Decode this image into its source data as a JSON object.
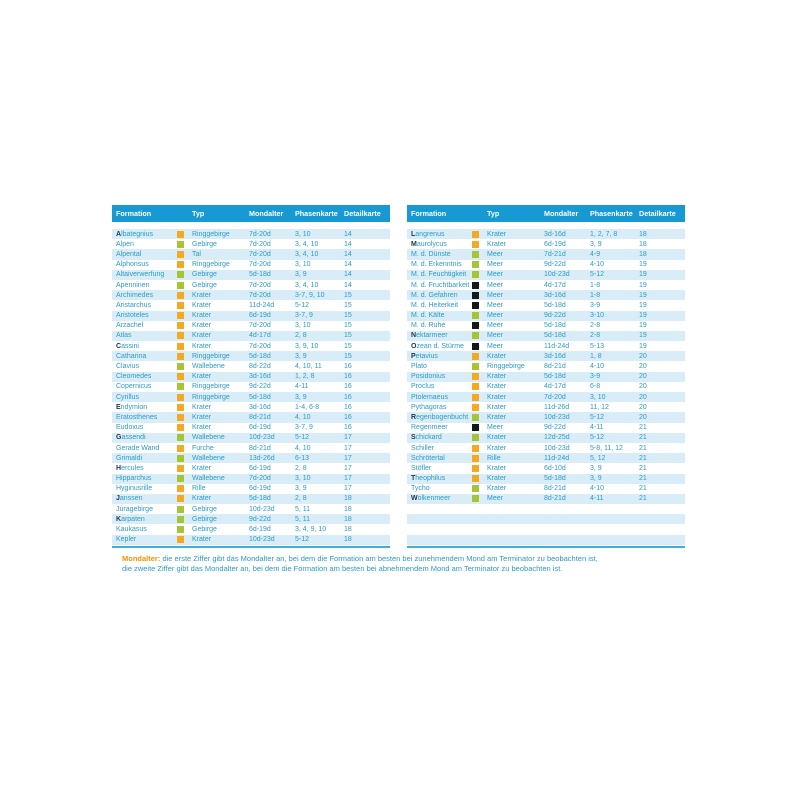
{
  "colors": {
    "header_bg": "#1799d3",
    "stripe": "#d9edf8",
    "text": "#2d9bc5",
    "bold_initial": "#21374d",
    "square_orange": "#f6a820",
    "square_green": "#a5c535",
    "square_black": "#14181b",
    "rule": "#3fadde",
    "footnote_label": "#f39200"
  },
  "footnote": {
    "label": "Mondalter:",
    "line1": "die erste Ziffer gibt das Mondalter an, bei dem die Formation am besten bei zunehmendem Mond am Terminator zu beobachten ist,",
    "line2": "die zweite Ziffer gibt das Mondalter an, bei dem die Formation am besten bei abnehmendem Mond am Terminator zu beobachten ist."
  },
  "tables": [
    {
      "id": "left",
      "headers": [
        "Formation",
        "Typ",
        "Mondalter",
        "Phasenkarte",
        "Detailkarte"
      ],
      "empty_rows": 0,
      "rows": [
        {
          "name": "Albategnius",
          "bold": true,
          "square": "orange",
          "typ": "Ringgebirge",
          "mondalter": "7d-20d",
          "phasenkarte": "3, 10",
          "detailkarte": "14"
        },
        {
          "name": "Alpen",
          "bold": false,
          "square": "green",
          "typ": "Gebirge",
          "mondalter": "7d-20d",
          "phasenkarte": "3, 4, 10",
          "detailkarte": "14"
        },
        {
          "name": "Alpental",
          "bold": false,
          "square": "orange",
          "typ": "Tal",
          "mondalter": "7d-20d",
          "phasenkarte": "3, 4, 10",
          "detailkarte": "14"
        },
        {
          "name": "Alphonsus",
          "bold": false,
          "square": "orange",
          "typ": "Ringgebirge",
          "mondalter": "7d-20d",
          "phasenkarte": "3, 10",
          "detailkarte": "14"
        },
        {
          "name": "Altaiverwerfung",
          "bold": false,
          "square": "green",
          "typ": "Gebirge",
          "mondalter": "5d-18d",
          "phasenkarte": "3, 9",
          "detailkarte": "14"
        },
        {
          "name": "Apenninen",
          "bold": false,
          "square": "green",
          "typ": "Gebirge",
          "mondalter": "7d-20d",
          "phasenkarte": "3, 4, 10",
          "detailkarte": "14"
        },
        {
          "name": "Archimedes",
          "bold": false,
          "square": "orange",
          "typ": "Krater",
          "mondalter": "7d-20d",
          "phasenkarte": "3-7, 9, 10",
          "detailkarte": "15"
        },
        {
          "name": "Aristarchus",
          "bold": false,
          "square": "orange",
          "typ": "Krater",
          "mondalter": "11d-24d",
          "phasenkarte": "5-12",
          "detailkarte": "15"
        },
        {
          "name": "Aristoteles",
          "bold": false,
          "square": "orange",
          "typ": "Krater",
          "mondalter": "6d-19d",
          "phasenkarte": "3-7, 9",
          "detailkarte": "15"
        },
        {
          "name": "Arzachel",
          "bold": false,
          "square": "orange",
          "typ": "Krater",
          "mondalter": "7d-20d",
          "phasenkarte": "3, 10",
          "detailkarte": "15"
        },
        {
          "name": "Atlas",
          "bold": false,
          "square": "orange",
          "typ": "Krater",
          "mondalter": "4d-17d",
          "phasenkarte": "2, 8",
          "detailkarte": "15"
        },
        {
          "name": "Cassini",
          "bold": true,
          "square": "orange",
          "typ": "Krater",
          "mondalter": "7d-20d",
          "phasenkarte": "3, 9, 10",
          "detailkarte": "15"
        },
        {
          "name": "Catharina",
          "bold": false,
          "square": "orange",
          "typ": "Ringgebirge",
          "mondalter": "5d-18d",
          "phasenkarte": "3, 9",
          "detailkarte": "15"
        },
        {
          "name": "Clavius",
          "bold": false,
          "square": "green",
          "typ": "Wallebene",
          "mondalter": "8d-22d",
          "phasenkarte": "4, 10, 11",
          "detailkarte": "16"
        },
        {
          "name": "Cleomedes",
          "bold": false,
          "square": "orange",
          "typ": "Krater",
          "mondalter": "3d-16d",
          "phasenkarte": "1, 2, 8",
          "detailkarte": "16"
        },
        {
          "name": "Copernicus",
          "bold": false,
          "square": "green",
          "typ": "Ringgebirge",
          "mondalter": "9d-22d",
          "phasenkarte": "4-11",
          "detailkarte": "16"
        },
        {
          "name": "Cyrillus",
          "bold": false,
          "square": "orange",
          "typ": "Ringgebirge",
          "mondalter": "5d-18d",
          "phasenkarte": "3, 9",
          "detailkarte": "16"
        },
        {
          "name": "Endymion",
          "bold": true,
          "square": "orange",
          "typ": "Krater",
          "mondalter": "3d-16d",
          "phasenkarte": "1-4, 6-8",
          "detailkarte": "16"
        },
        {
          "name": "Eratosthenes",
          "bold": false,
          "square": "orange",
          "typ": "Krater",
          "mondalter": "8d-21d",
          "phasenkarte": "4, 10",
          "detailkarte": "16"
        },
        {
          "name": "Eudoxus",
          "bold": false,
          "square": "orange",
          "typ": "Krater",
          "mondalter": "6d-19d",
          "phasenkarte": "3-7, 9",
          "detailkarte": "16"
        },
        {
          "name": "Gassendi",
          "bold": true,
          "square": "green",
          "typ": "Wallebene",
          "mondalter": "10d-23d",
          "phasenkarte": "5-12",
          "detailkarte": "17"
        },
        {
          "name": "Gerade Wand",
          "bold": false,
          "square": "orange",
          "typ": "Furche",
          "mondalter": "8d-21d",
          "phasenkarte": "4, 10",
          "detailkarte": "17"
        },
        {
          "name": "Grimaldi",
          "bold": false,
          "square": "green",
          "typ": "Wallebene",
          "mondalter": "13d-26d",
          "phasenkarte": "6-13",
          "detailkarte": "17"
        },
        {
          "name": "Hercules",
          "bold": true,
          "square": "orange",
          "typ": "Krater",
          "mondalter": "6d-19d",
          "phasenkarte": "2, 8",
          "detailkarte": "17"
        },
        {
          "name": "Hipparchus",
          "bold": false,
          "square": "green",
          "typ": "Wallebene",
          "mondalter": "7d-20d",
          "phasenkarte": "3, 10",
          "detailkarte": "17"
        },
        {
          "name": "Hyginusrille",
          "bold": false,
          "square": "orange",
          "typ": "Rille",
          "mondalter": "6d-19d",
          "phasenkarte": "3, 9",
          "detailkarte": "17"
        },
        {
          "name": "Janssen",
          "bold": true,
          "square": "orange",
          "typ": "Krater",
          "mondalter": "5d-18d",
          "phasenkarte": "2, 8",
          "detailkarte": "18"
        },
        {
          "name": "Juragebirge",
          "bold": false,
          "square": "green",
          "typ": "Gebirge",
          "mondalter": "10d-23d",
          "phasenkarte": "5, 11",
          "detailkarte": "18"
        },
        {
          "name": "Karpaten",
          "bold": true,
          "square": "green",
          "typ": "Gebirge",
          "mondalter": "9d-22d",
          "phasenkarte": "5, 11",
          "detailkarte": "18"
        },
        {
          "name": "Kaukasus",
          "bold": false,
          "square": "green",
          "typ": "Gebirge",
          "mondalter": "6d-19d",
          "phasenkarte": "3, 4, 9, 10",
          "detailkarte": "18"
        },
        {
          "name": "Kepler",
          "bold": false,
          "square": "orange",
          "typ": "Krater",
          "mondalter": "10d-23d",
          "phasenkarte": "5-12",
          "detailkarte": "18"
        }
      ]
    },
    {
      "id": "right",
      "headers": [
        "Formation",
        "Typ",
        "Mondalter",
        "Phasenkarte",
        "Detailkarte"
      ],
      "empty_rows": 4,
      "rows": [
        {
          "name": "Langrenus",
          "bold": true,
          "square": "orange",
          "typ": "Krater",
          "mondalter": "3d-16d",
          "phasenkarte": "1, 2, 7, 8",
          "detailkarte": "18"
        },
        {
          "name": "Maurolycus",
          "bold": true,
          "square": "orange",
          "typ": "Krater",
          "mondalter": "6d-19d",
          "phasenkarte": "3, 9",
          "detailkarte": "18"
        },
        {
          "name": "M. d. Dünste",
          "bold": false,
          "square": "green",
          "typ": "Meer",
          "mondalter": "7d-21d",
          "phasenkarte": "4-9",
          "detailkarte": "18"
        },
        {
          "name": "M. d. Erkenntnis",
          "bold": false,
          "square": "green",
          "typ": "Meer",
          "mondalter": "9d-22d",
          "phasenkarte": "4-10",
          "detailkarte": "19"
        },
        {
          "name": "M. d. Feuchtigkeit",
          "bold": false,
          "square": "green",
          "typ": "Meer",
          "mondalter": "10d-23d",
          "phasenkarte": "5-12",
          "detailkarte": "19"
        },
        {
          "name": "M. d. Fruchtbarkeit",
          "bold": false,
          "square": "black",
          "typ": "Meer",
          "mondalter": "4d-17d",
          "phasenkarte": "1-8",
          "detailkarte": "19"
        },
        {
          "name": "M. d. Gefahren",
          "bold": false,
          "square": "black",
          "typ": "Meer",
          "mondalter": "3d-16d",
          "phasenkarte": "1-8",
          "detailkarte": "19"
        },
        {
          "name": "M. d. Heiterkeit",
          "bold": false,
          "square": "black",
          "typ": "Meer",
          "mondalter": "5d-18d",
          "phasenkarte": "3-9",
          "detailkarte": "19"
        },
        {
          "name": "M. d. Kälte",
          "bold": false,
          "square": "green",
          "typ": "Meer",
          "mondalter": "9d-22d",
          "phasenkarte": "3-10",
          "detailkarte": "19"
        },
        {
          "name": "M. d. Ruhe",
          "bold": false,
          "square": "black",
          "typ": "Meer",
          "mondalter": "5d-18d",
          "phasenkarte": "2-8",
          "detailkarte": "19"
        },
        {
          "name": "Nektarmeer",
          "bold": true,
          "square": "green",
          "typ": "Meer",
          "mondalter": "5d-18d",
          "phasenkarte": "2-8",
          "detailkarte": "19"
        },
        {
          "name": "Ozean d. Stürme",
          "bold": true,
          "square": "black",
          "typ": "Meer",
          "mondalter": "11d-24d",
          "phasenkarte": "5-13",
          "detailkarte": "19"
        },
        {
          "name": "Petavius",
          "bold": true,
          "square": "orange",
          "typ": "Krater",
          "mondalter": "3d-16d",
          "phasenkarte": "1, 8",
          "detailkarte": "20"
        },
        {
          "name": "Plato",
          "bold": false,
          "square": "green",
          "typ": "Ringgebirge",
          "mondalter": "8d-21d",
          "phasenkarte": "4-10",
          "detailkarte": "20"
        },
        {
          "name": "Posidonius",
          "bold": false,
          "square": "orange",
          "typ": "Krater",
          "mondalter": "5d-18d",
          "phasenkarte": "3-9",
          "detailkarte": "20"
        },
        {
          "name": "Proclus",
          "bold": false,
          "square": "orange",
          "typ": "Krater",
          "mondalter": "4d-17d",
          "phasenkarte": "6-8",
          "detailkarte": "20"
        },
        {
          "name": "Ptolemaeus",
          "bold": false,
          "square": "orange",
          "typ": "Krater",
          "mondalter": "7d-20d",
          "phasenkarte": "3, 10",
          "detailkarte": "20"
        },
        {
          "name": "Pythagoras",
          "bold": false,
          "square": "orange",
          "typ": "Krater",
          "mondalter": "11d-26d",
          "phasenkarte": "11, 12",
          "detailkarte": "20"
        },
        {
          "name": "Regenbogenbucht",
          "bold": true,
          "square": "green",
          "typ": "Krater",
          "mondalter": "10d-23d",
          "phasenkarte": "5-12",
          "detailkarte": "20"
        },
        {
          "name": "Regenmeer",
          "bold": false,
          "square": "black",
          "typ": "Meer",
          "mondalter": "9d-22d",
          "phasenkarte": "4-11",
          "detailkarte": "21"
        },
        {
          "name": "Schickard",
          "bold": true,
          "square": "green",
          "typ": "Krater",
          "mondalter": "12d-25d",
          "phasenkarte": "5-12",
          "detailkarte": "21"
        },
        {
          "name": "Schiller",
          "bold": false,
          "square": "orange",
          "typ": "Krater",
          "mondalter": "10d-23d",
          "phasenkarte": "5-8, 11, 12",
          "detailkarte": "21"
        },
        {
          "name": "Schrötertal",
          "bold": false,
          "square": "orange",
          "typ": "Rille",
          "mondalter": "11d-24d",
          "phasenkarte": "5, 12",
          "detailkarte": "21"
        },
        {
          "name": "Stöfler",
          "bold": false,
          "square": "orange",
          "typ": "Krater",
          "mondalter": "6d-10d",
          "phasenkarte": "3, 9",
          "detailkarte": "21"
        },
        {
          "name": "Theophilus",
          "bold": true,
          "square": "orange",
          "typ": "Krater",
          "mondalter": "5d-18d",
          "phasenkarte": "3, 9",
          "detailkarte": "21"
        },
        {
          "name": "Tycho",
          "bold": false,
          "square": "green",
          "typ": "Krater",
          "mondalter": "8d-21d",
          "phasenkarte": "4-10",
          "detailkarte": "21"
        },
        {
          "name": "Wolkenmeer",
          "bold": true,
          "square": "green",
          "typ": "Meer",
          "mondalter": "8d-21d",
          "phasenkarte": "4-11",
          "detailkarte": "21"
        }
      ]
    }
  ]
}
